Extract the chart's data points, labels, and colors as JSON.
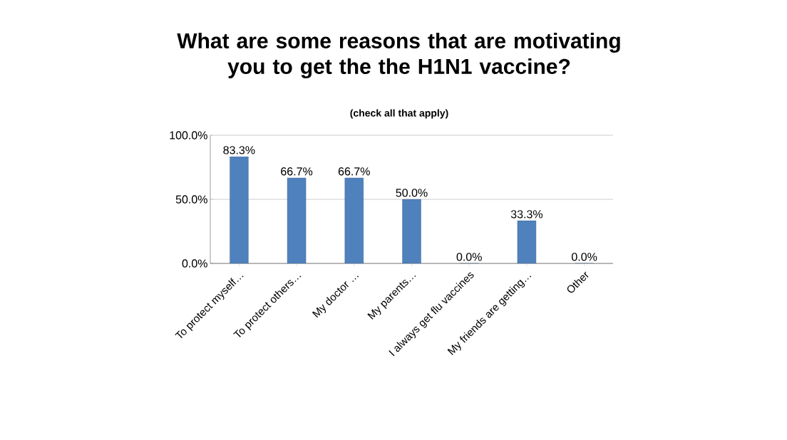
{
  "chart_data": {
    "type": "bar",
    "title": "What are some reasons that are motivating you to get the the H1N1 vaccine?",
    "subtitle": "(check all that apply)",
    "categories": [
      "To protect myself…",
      "To protect others…",
      "My doctor …",
      "My parents…",
      "I always get flu vaccines",
      "My friends are getting…",
      "Other"
    ],
    "values": [
      83.3,
      66.7,
      66.7,
      50.0,
      0.0,
      33.3,
      0.0
    ],
    "value_labels": [
      "83.3%",
      "66.7%",
      "66.7%",
      "50.0%",
      "0.0%",
      "33.3%",
      "0.0%"
    ],
    "color": "#4f81bd",
    "ylim": [
      0,
      100
    ],
    "yticks": [
      {
        "value": 0,
        "label": "0.0%"
      },
      {
        "value": 50,
        "label": "50.0%"
      },
      {
        "value": 100,
        "label": "100.0%"
      }
    ],
    "grid": "y"
  }
}
